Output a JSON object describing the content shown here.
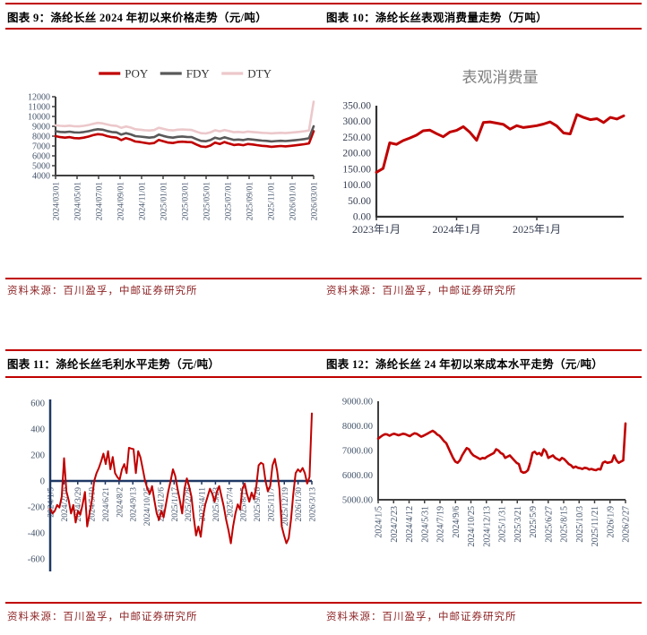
{
  "figures": {
    "fig9": {
      "title": "图表 9：涤纶长丝 2024 年初以来价格走势（元/吨）",
      "source": "资料来源：百川盈孚，中邮证券研究所"
    },
    "fig10": {
      "title": "图表 10：涤纶长丝表观消费量走势（万吨）",
      "source": "资料来源：百川盈孚，中邮证券研究所"
    },
    "fig11": {
      "title": "图表 11：涤纶长丝毛利水平走势（元/吨）",
      "source": "资料来源：百川盈孚，中邮证券研究所"
    },
    "fig12": {
      "title": "图表 12：涤纶长丝 24 年初以来成本水平走势（元/吨）",
      "source": "资料来源：百川盈孚，中邮证券研究所"
    }
  },
  "palette": {
    "accent_red": "#C00000",
    "rule_red": "#C00000",
    "navy_axis": "#1F3864",
    "gray_axis": "#404040",
    "tick_label": "#44546A",
    "source_text": "#8E2426",
    "dty_pink": "#ECC8CB",
    "fdy_gray": "#595959"
  },
  "chart_data": [
    {
      "id": "price",
      "type": "line",
      "title": "",
      "ylim": [
        4000,
        12000
      ],
      "yticks": [
        "12000",
        "11000",
        "10000",
        "9000",
        "8000",
        "7000",
        "6000",
        "5000",
        "4000"
      ],
      "xticklabels": [
        "2024/03/01",
        "2024/05/01",
        "2024/07/01",
        "2024/09/01",
        "2024/11/01",
        "2025/01/01",
        "2025/03/01",
        "2025/05/01",
        "2025/07/01",
        "2025/09/01",
        "2025/11/01",
        "2026/01/01",
        "2026/03/01"
      ],
      "legend": [
        {
          "name": "POY",
          "color": "#C00000"
        },
        {
          "name": "FDY",
          "color": "#595959"
        },
        {
          "name": "DTY",
          "color": "#ECC8CB"
        }
      ],
      "series": [
        {
          "name": "POY",
          "color": "#C00000",
          "values": [
            8000,
            7900,
            7850,
            7900,
            7800,
            7780,
            7850,
            7950,
            8100,
            8200,
            8150,
            8000,
            7900,
            7850,
            7600,
            7800,
            7650,
            7450,
            7400,
            7320,
            7250,
            7300,
            7620,
            7480,
            7350,
            7300,
            7400,
            7440,
            7400,
            7380,
            7150,
            6950,
            6900,
            7050,
            7350,
            7200,
            7400,
            7250,
            7100,
            7150,
            7080,
            7200,
            7150,
            7080,
            7020,
            6980,
            6920,
            6960,
            7000,
            6960,
            7010,
            7060,
            7120,
            7180,
            7260,
            8500
          ]
        },
        {
          "name": "FDY",
          "color": "#595959",
          "values": [
            8500,
            8430,
            8400,
            8450,
            8380,
            8360,
            8420,
            8500,
            8620,
            8700,
            8650,
            8520,
            8420,
            8380,
            8150,
            8300,
            8180,
            8000,
            7950,
            7900,
            7850,
            7900,
            8150,
            8020,
            7900,
            7850,
            7930,
            7960,
            7920,
            7900,
            7700,
            7520,
            7480,
            7600,
            7850,
            7720,
            7880,
            7750,
            7620,
            7650,
            7600,
            7700,
            7650,
            7600,
            7550,
            7520,
            7460,
            7500,
            7530,
            7500,
            7540,
            7580,
            7640,
            7700,
            7780,
            9000
          ]
        },
        {
          "name": "DTY",
          "color": "#ECC8CB",
          "values": [
            9100,
            9050,
            9020,
            9060,
            9000,
            8990,
            9050,
            9130,
            9250,
            9350,
            9300,
            9180,
            9080,
            9040,
            8850,
            8980,
            8870,
            8700,
            8650,
            8600,
            8570,
            8620,
            8850,
            8740,
            8620,
            8580,
            8650,
            8680,
            8650,
            8630,
            8450,
            8300,
            8270,
            8380,
            8600,
            8490,
            8620,
            8520,
            8400,
            8430,
            8380,
            8460,
            8420,
            8380,
            8340,
            8320,
            8280,
            8310,
            8340,
            8310,
            8350,
            8390,
            8440,
            8500,
            8570,
            11500
          ]
        }
      ]
    },
    {
      "id": "consumption",
      "type": "line",
      "title": "表观消费量",
      "ylim": [
        0,
        350
      ],
      "yticks": [
        "350.00",
        "300.00",
        "250.00",
        "200.00",
        "150.00",
        "100.00",
        "50.00",
        "0.00"
      ],
      "xticklabels": [
        "2023年1月",
        "2024年1月",
        "2025年1月"
      ],
      "xtick_index": [
        0,
        12,
        24
      ],
      "series": [
        {
          "name": "表观消费量",
          "color": "#C00000",
          "values": [
            140,
            152,
            233,
            228,
            240,
            248,
            257,
            271,
            273,
            262,
            252,
            267,
            272,
            284,
            266,
            241,
            297,
            299,
            295,
            291,
            276,
            287,
            281,
            284,
            287,
            292,
            299,
            286,
            264,
            261,
            322,
            313,
            306,
            309,
            297,
            313,
            308,
            318
          ]
        }
      ]
    },
    {
      "id": "margin",
      "type": "line",
      "title": "",
      "ylim": [
        -600,
        600
      ],
      "yticks": [
        "600",
        "400",
        "200",
        "0",
        "-200",
        "-400",
        "-600"
      ],
      "xticklabels": [
        "2024/1/5",
        "2024/2/16",
        "2024/3/29",
        "2024/5/10",
        "2024/6/21",
        "2024/8/2",
        "2024/9/13",
        "2024/10/25",
        "2024/12/6",
        "2025/1/17",
        "2025/2/28",
        "2025/4/11",
        "2025/5/23",
        "2025/7/4",
        "2025/8/15",
        "2025/9/26",
        "2025/11/7",
        "2025/12/19",
        "2026/1/30",
        "2026/3/13"
      ],
      "series": [
        {
          "name": "毛利",
          "color": "#C00000",
          "values": [
            -215,
            -250,
            -230,
            -185,
            -205,
            -120,
            175,
            -80,
            -150,
            -250,
            -185,
            -320,
            -230,
            -260,
            -180,
            -85,
            -350,
            -250,
            -150,
            0,
            60,
            100,
            150,
            210,
            130,
            230,
            90,
            185,
            60,
            30,
            10,
            90,
            130,
            60,
            255,
            250,
            245,
            60,
            230,
            180,
            90,
            0,
            -60,
            -100,
            -40,
            -150,
            -250,
            -300,
            -230,
            -280,
            -180,
            -80,
            0,
            90,
            40,
            -60,
            -150,
            -250,
            -60,
            20,
            -40,
            -120,
            -280,
            -420,
            -350,
            -430,
            -280,
            -180,
            -120,
            -60,
            -100,
            -160,
            -80,
            -40,
            -120,
            -200,
            -300,
            -380,
            -480,
            -350,
            -250,
            -180,
            -220,
            -60,
            -20,
            -100,
            -160,
            -90,
            -140,
            -40,
            120,
            140,
            130,
            0,
            -80,
            -40,
            120,
            170,
            80,
            -60,
            -350,
            -420,
            -480,
            -440,
            -300,
            -100,
            60,
            90,
            70,
            100,
            60,
            -20,
            30,
            520
          ]
        }
      ]
    },
    {
      "id": "cost",
      "type": "line",
      "title": "",
      "ylim": [
        5000,
        9000
      ],
      "yticks": [
        "9000.00",
        "8000.00",
        "7000.00",
        "6000.00",
        "5000.00"
      ],
      "xticklabels": [
        "2024/1/5",
        "2024/2/23",
        "2024/4/12",
        "2024/5/31",
        "2024/7/19",
        "2024/9/6",
        "2024/10/25",
        "2024/12/13",
        "2025/1/31",
        "2025/3/21",
        "2025/5/9",
        "2025/6/27",
        "2025/8/15",
        "2025/10/3",
        "2025/11/21",
        "2026/1/9",
        "2026/2/27"
      ],
      "series": [
        {
          "name": "成本",
          "color": "#C00000",
          "values": [
            7480,
            7550,
            7620,
            7660,
            7650,
            7600,
            7650,
            7680,
            7650,
            7620,
            7650,
            7680,
            7660,
            7620,
            7580,
            7650,
            7700,
            7680,
            7620,
            7560,
            7600,
            7650,
            7700,
            7750,
            7800,
            7740,
            7650,
            7600,
            7500,
            7380,
            7300,
            7100,
            6900,
            6700,
            6550,
            6500,
            6600,
            6800,
            6950,
            7100,
            7050,
            6900,
            6800,
            6750,
            6700,
            6650,
            6700,
            6680,
            6750,
            6800,
            6850,
            6900,
            7050,
            7000,
            6900,
            6850,
            6700,
            6750,
            6800,
            6700,
            6600,
            6500,
            6450,
            6150,
            6100,
            6120,
            6200,
            6500,
            6900,
            6950,
            6850,
            6900,
            6800,
            7050,
            6950,
            6700,
            6750,
            6800,
            6700,
            6650,
            6600,
            6700,
            6650,
            6550,
            6450,
            6400,
            6300,
            6350,
            6300,
            6280,
            6250,
            6300,
            6280,
            6230,
            6250,
            6220,
            6200,
            6250,
            6230,
            6500,
            6550,
            6500,
            6520,
            6550,
            6800,
            6600,
            6500,
            6550,
            6600,
            8100
          ]
        }
      ]
    }
  ]
}
